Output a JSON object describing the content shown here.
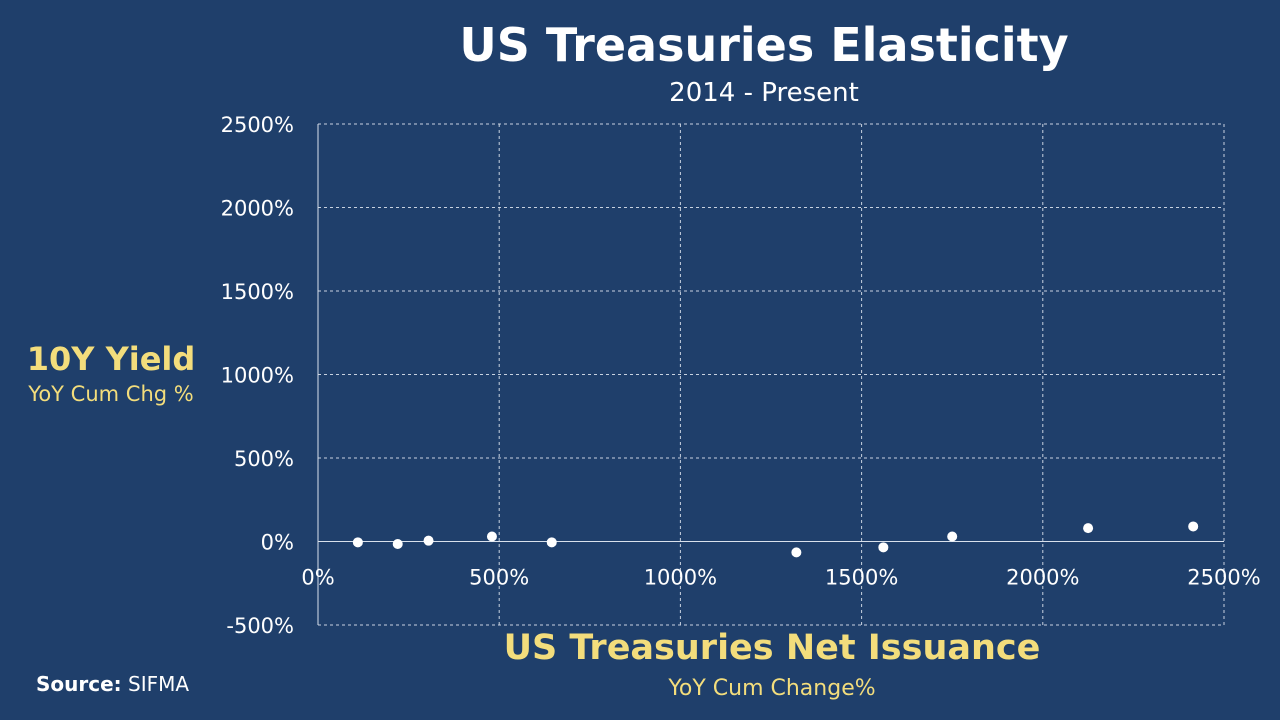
{
  "chart_data": {
    "type": "scatter",
    "title": "US Treasuries Elasticity",
    "subtitle": "2014 - Present",
    "xlabel": "US Treasuries Net Issuance",
    "xlabel_sub": "YoY Cum Change%",
    "ylabel": "10Y Yield",
    "ylabel_sub": "YoY Cum Chg %",
    "xlim": [
      0,
      2500
    ],
    "ylim": [
      -500,
      2500
    ],
    "x_ticks": [
      0,
      500,
      1000,
      1500,
      2000,
      2500
    ],
    "y_ticks": [
      -500,
      0,
      500,
      1000,
      1500,
      2000,
      2500
    ],
    "x_tick_labels": [
      "0%",
      "500%",
      "1000%",
      "1500%",
      "2000%",
      "2500%"
    ],
    "y_tick_labels": [
      "-500%",
      "0%",
      "500%",
      "1000%",
      "1500%",
      "2000%",
      "2500%"
    ],
    "grid": true,
    "marker_color": "#ffffff",
    "points": [
      {
        "x": 110,
        "y": -5
      },
      {
        "x": 220,
        "y": -15
      },
      {
        "x": 305,
        "y": 5
      },
      {
        "x": 480,
        "y": 30
      },
      {
        "x": 645,
        "y": -5
      },
      {
        "x": 1320,
        "y": -65
      },
      {
        "x": 1560,
        "y": -35
      },
      {
        "x": 1750,
        "y": 30
      },
      {
        "x": 2125,
        "y": 80
      },
      {
        "x": 2415,
        "y": 90
      }
    ]
  },
  "source": {
    "label": "Source:",
    "value": "SIFMA"
  },
  "colors": {
    "background": "#1f3f6b",
    "accent": "#f3dd7c",
    "text": "#ffffff"
  }
}
